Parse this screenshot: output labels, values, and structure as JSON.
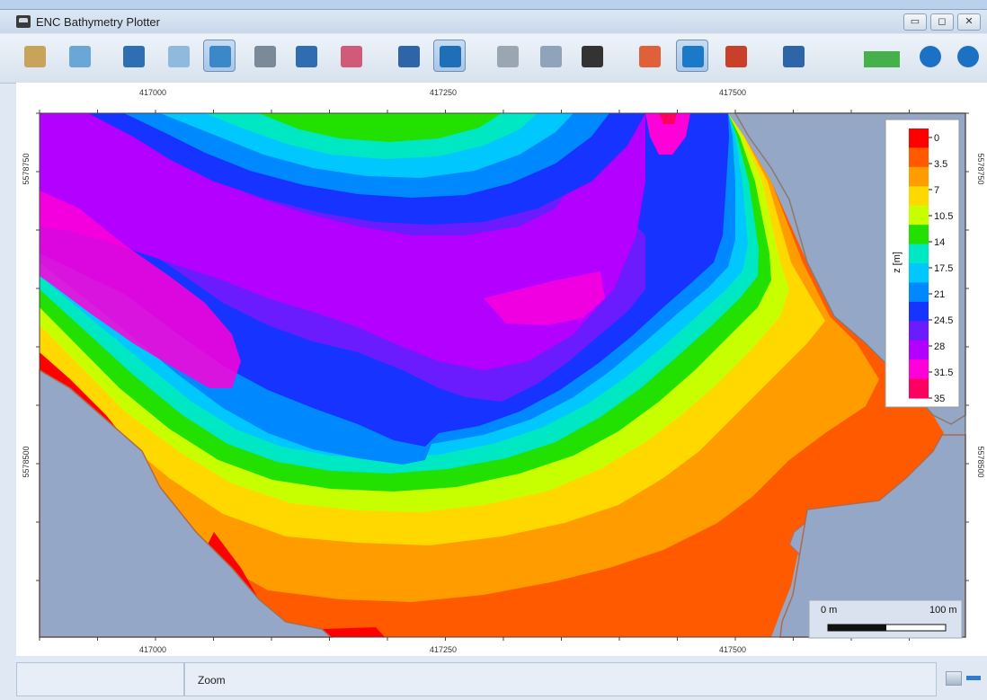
{
  "window": {
    "title": "ENC Bathymetry Plotter"
  },
  "title_buttons": {
    "minimize": "▭",
    "maximize": "◻",
    "close": "✕"
  },
  "toolbar": [
    {
      "name": "open-folder-icon",
      "color": "#c8a35a"
    },
    {
      "name": "export-chart-icon",
      "color": "#6aa6d6"
    },
    {
      "name": "pan-hand-icon",
      "color": "#2e6fb3"
    },
    {
      "name": "zoom-extent-icon",
      "color": "#8fb9dd"
    },
    {
      "name": "zoom-icon",
      "color": "#3a88c8",
      "active": true
    },
    {
      "name": "compass-measure-icon",
      "color": "#7a8a99"
    },
    {
      "name": "histogram-icon",
      "color": "#2f6db1"
    },
    {
      "name": "profile-icon",
      "color": "#d05a7a"
    },
    {
      "name": "settings-gear-icon",
      "color": "#2e64a8"
    },
    {
      "name": "3d-view-icon",
      "color": "#1f6fb8",
      "active": true
    },
    {
      "name": "grid-surface-icon",
      "color": "#9aa6b2"
    },
    {
      "name": "layers-icon",
      "color": "#8fa4bb"
    },
    {
      "name": "soundings-numbers-icon",
      "color": "#333333"
    },
    {
      "name": "color-surface-icon",
      "color": "#e0603a"
    },
    {
      "name": "contour-color-icon",
      "color": "#1a7ac8",
      "active": true
    },
    {
      "name": "slope-icon",
      "color": "#c8402a"
    },
    {
      "name": "save-icon",
      "color": "#2e64a8"
    },
    {
      "name": "progress-indicator-icon",
      "color": "#44b14a"
    },
    {
      "name": "info-icon",
      "color": "#1b72c4"
    },
    {
      "name": "help-icon",
      "color": "#1b72c4"
    }
  ],
  "plot": {
    "x_ticks": [
      "417000",
      "417250",
      "417500"
    ],
    "y_ticks_left": [
      "5578750",
      "5578500"
    ],
    "y_ticks_right": [
      "5578750",
      "5578500"
    ]
  },
  "legend": {
    "title": "z [m]",
    "labels": [
      "0",
      "3.5",
      "7",
      "10.5",
      "14",
      "17.5",
      "21",
      "24.5",
      "28",
      "31.5",
      "35"
    ],
    "colors": [
      "#ff0000",
      "#ff5a00",
      "#ff9c00",
      "#ffd800",
      "#c8ff00",
      "#22e000",
      "#00e7c4",
      "#00c8ff",
      "#0088ff",
      "#1733ff",
      "#6a1cff",
      "#b400ff",
      "#ff00d8",
      "#ff0060"
    ]
  },
  "scale_bar": {
    "start": "0 m",
    "end": "100 m"
  },
  "status": {
    "message": "Zoom"
  }
}
